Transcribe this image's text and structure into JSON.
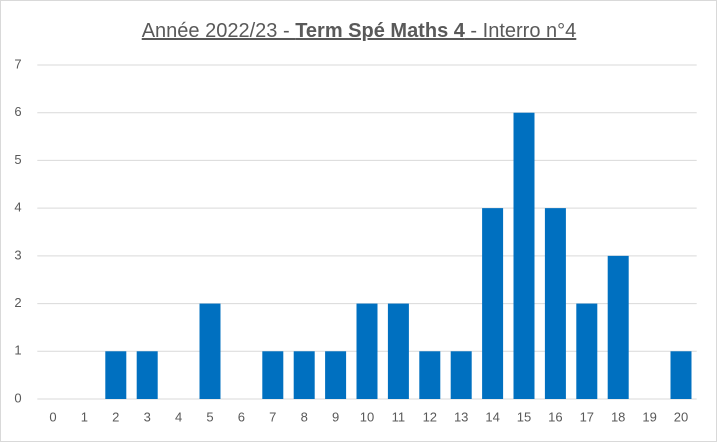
{
  "chart_data": {
    "type": "bar",
    "title": [
      "Année 2022/23 - ",
      "Term Spé Maths 4",
      " - Interro n°4"
    ],
    "categories": [
      "0",
      "1",
      "2",
      "3",
      "4",
      "5",
      "6",
      "7",
      "8",
      "9",
      "10",
      "11",
      "12",
      "13",
      "14",
      "15",
      "16",
      "17",
      "18",
      "19",
      "20"
    ],
    "values": [
      0,
      0,
      1,
      1,
      0,
      2,
      0,
      1,
      1,
      1,
      2,
      2,
      1,
      1,
      4,
      6,
      4,
      2,
      3,
      0,
      1
    ],
    "color": "#0070c0",
    "ylim": [
      0,
      7
    ],
    "yticks": [
      0,
      1,
      2,
      3,
      4,
      5,
      6,
      7
    ],
    "grid": true
  }
}
